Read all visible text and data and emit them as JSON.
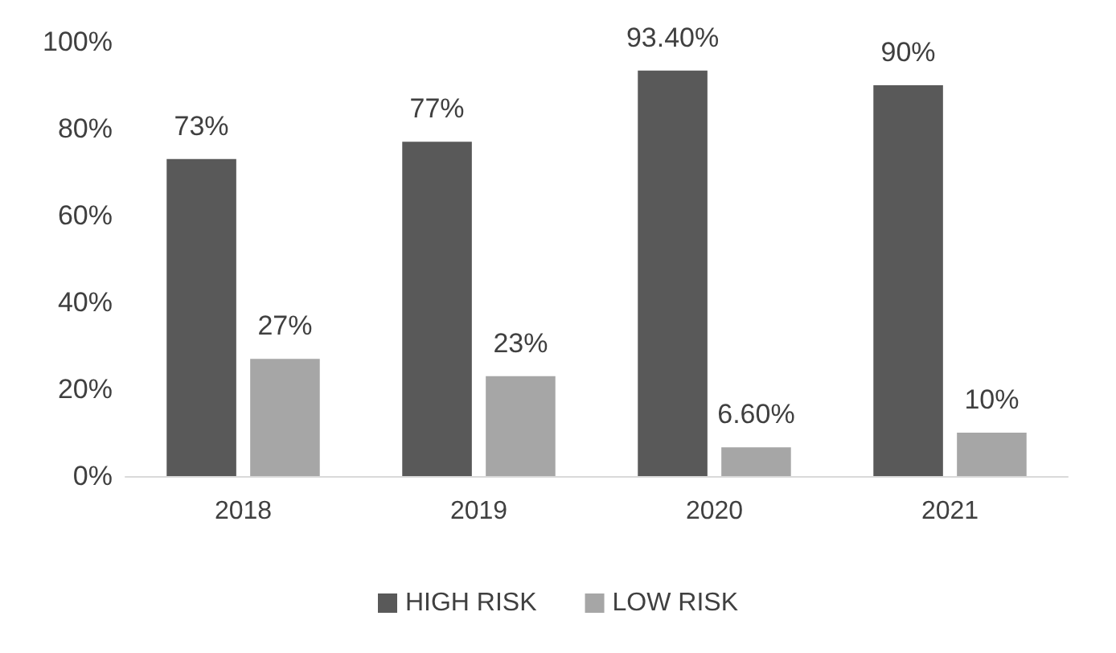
{
  "chart_data": {
    "type": "bar",
    "categories": [
      "2018",
      "2019",
      "2020",
      "2021"
    ],
    "series": [
      {
        "name": "HIGH RISK",
        "color": "#595959",
        "values": [
          73,
          77,
          93.4,
          90
        ],
        "value_labels": [
          "73%",
          "77%",
          "93.40%",
          "90%"
        ]
      },
      {
        "name": "LOW RISK",
        "color": "#a6a6a6",
        "values": [
          27,
          23,
          6.6,
          10
        ],
        "value_labels": [
          "27%",
          "23%",
          "6.60%",
          "10%"
        ]
      }
    ],
    "ylim": [
      0,
      100
    ],
    "yticks": [
      {
        "value": 0,
        "label": "0%"
      },
      {
        "value": 20,
        "label": "20%"
      },
      {
        "value": 40,
        "label": "40%"
      },
      {
        "value": 60,
        "label": "60%"
      },
      {
        "value": 80,
        "label": "80%"
      },
      {
        "value": 100,
        "label": "100%"
      }
    ],
    "grid": false,
    "legend": "bottom"
  }
}
